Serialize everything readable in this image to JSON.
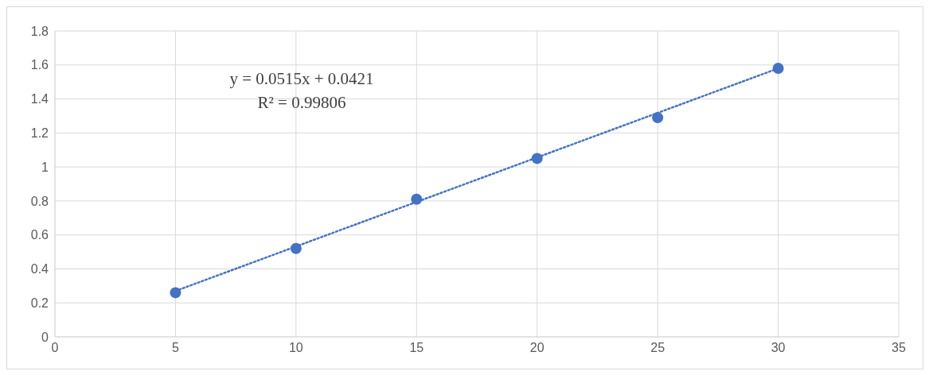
{
  "chart_data": {
    "type": "scatter",
    "x": [
      5,
      10,
      15,
      20,
      25,
      30
    ],
    "series": [
      {
        "color": "#4472c4",
        "values": [
          0.26,
          0.52,
          0.81,
          1.05,
          1.29,
          1.58
        ],
        "marker": "circle"
      },
      {
        "type": "line",
        "color": "#4472c4",
        "x": [
          5,
          30
        ],
        "values": [
          0.27,
          1.58
        ],
        "line_style": "dotted"
      }
    ],
    "xlim": [
      0,
      35
    ],
    "xticks": [
      0,
      5,
      10,
      15,
      20,
      25,
      30,
      35
    ],
    "ylim": [
      0,
      1.8
    ],
    "yticks": [
      0,
      0.2,
      0.4,
      0.6,
      0.8,
      1,
      1.2,
      1.4,
      1.6,
      1.8
    ],
    "grid": true,
    "annotations": [
      "y = 0.0515x + 0.0421",
      "R² = 0.99806"
    ]
  }
}
